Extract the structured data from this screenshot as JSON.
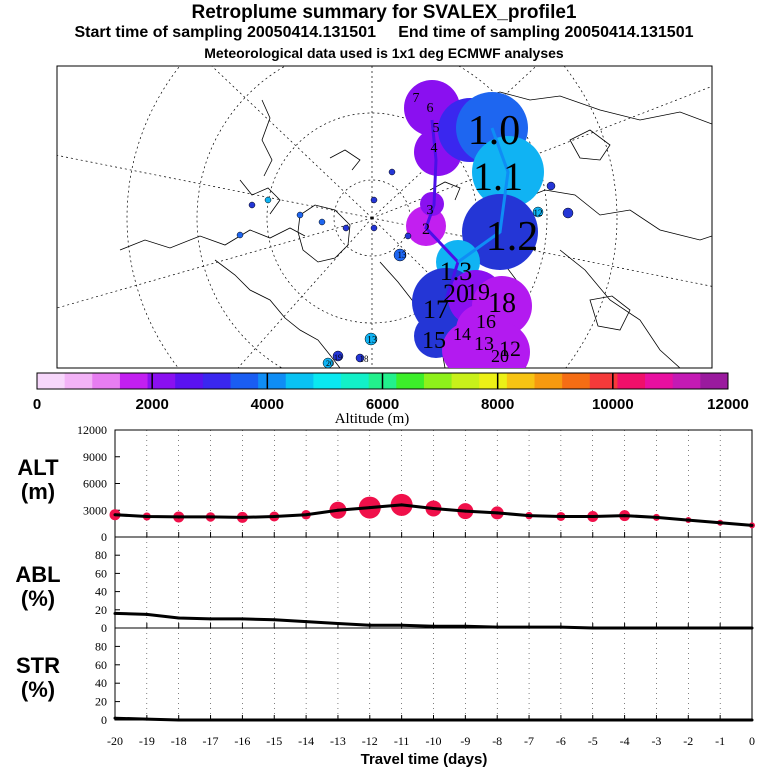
{
  "header": {
    "title": "Retroplume summary for SVALEX_profile1",
    "start_label": "Start time of sampling 20050414.131501",
    "end_label": "End time of sampling 20050414.131501",
    "met_label": "Meteorological data used is 1x1 deg ECMWF analyses"
  },
  "colorbar": {
    "label": "Altitude  (m)",
    "ticks": [
      "0",
      "2000",
      "4000",
      "6000",
      "8000",
      "10000",
      "12000"
    ],
    "colors": [
      "#f7d7fb",
      "#f3b3f7",
      "#e77df1",
      "#c21ff0",
      "#8a10f0",
      "#5a12f0",
      "#3a27ef",
      "#1a5df2",
      "#0f8df5",
      "#09c2f3",
      "#0ae8f0",
      "#12f0c8",
      "#22f08c",
      "#3cee2a",
      "#8ef01a",
      "#c8f01a",
      "#ecf016",
      "#f7c413",
      "#f79a10",
      "#f56d14",
      "#f53a3a",
      "#f0106a",
      "#e810a0",
      "#c41ab4",
      "#9a1a9e"
    ]
  },
  "map": {
    "labels": [
      {
        "t": "1.0",
        "c": "#1e66f0"
      },
      {
        "t": "1.1",
        "c": "#10b3f3"
      },
      {
        "t": "1.2",
        "c": "#2436d6"
      },
      {
        "t": "1.3",
        "c": "#10b3f3"
      },
      {
        "t": "20",
        "c": "#4a10e8"
      },
      {
        "t": "19",
        "c": "#b31af0"
      },
      {
        "t": "18",
        "c": "#b31af0"
      },
      {
        "t": "17",
        "c": "#4a10e8"
      },
      {
        "t": "16",
        "c": "#b31af0"
      },
      {
        "t": "15",
        "c": "#2436d6"
      },
      {
        "t": "14",
        "c": "#b31af0"
      },
      {
        "t": "13",
        "c": "#b31af0"
      },
      {
        "t": "12",
        "c": "#b31af0"
      },
      {
        "t": "20",
        "c": "#b31af0"
      },
      {
        "t": "7",
        "c": "#8a10f0"
      },
      {
        "t": "6",
        "c": "#8a10f0"
      },
      {
        "t": "5",
        "c": "#4a10e8"
      },
      {
        "t": "4",
        "c": "#8a10f0"
      },
      {
        "t": "3",
        "c": "#8a10f0"
      },
      {
        "t": "2",
        "c": "#c21ff0"
      },
      {
        "t": "12",
        "c": "#10b3f3"
      },
      {
        "t": "13",
        "c": "#10b3f3"
      },
      {
        "t": "13",
        "c": "#2436d6"
      },
      {
        "t": "18",
        "c": "#2436d6"
      },
      {
        "t": "19",
        "c": "#10b3f3"
      },
      {
        "t": "20",
        "c": "#10b3f3"
      }
    ]
  },
  "chart_data": {
    "type": "line",
    "xlabel": "Travel time (days)",
    "x": [
      -20,
      -19,
      -18,
      -17,
      -16,
      -15,
      -14,
      -13,
      -12,
      -11,
      -10,
      -9,
      -8,
      -7,
      -6,
      -5,
      -4,
      -3,
      -2,
      -1,
      0
    ],
    "xtick_labels": [
      "-20",
      "-19",
      "-18",
      "-17",
      "-16",
      "-15",
      "-14",
      "-13",
      "-12",
      "-11",
      "-10",
      "-9",
      "-8",
      "-7",
      "-6",
      "-5",
      "-4",
      "-3",
      "-2",
      "-1",
      "0"
    ],
    "panels": [
      {
        "label_top": "ALT",
        "label_bottom": "(m)",
        "ylim": [
          0,
          12000
        ],
        "yticks": [
          0,
          3000,
          6000,
          9000,
          12000
        ],
        "ytick_labels": [
          "0",
          "3000",
          "6000",
          "9000",
          "12000"
        ],
        "mean": [
          2500,
          2300,
          2250,
          2250,
          2200,
          2300,
          2500,
          3000,
          3300,
          3600,
          3200,
          2900,
          2700,
          2400,
          2300,
          2300,
          2400,
          2200,
          1900,
          1600,
          1300
        ],
        "spread": [
          1100,
          800,
          1100,
          950,
          1100,
          1000,
          950,
          1700,
          2200,
          2200,
          1600,
          1600,
          1300,
          750,
          900,
          1100,
          1100,
          700,
          350,
          300,
          200
        ],
        "dot_color": "#f0104a"
      },
      {
        "label_top": "ABL",
        "label_bottom": "(%)",
        "ylim": [
          0,
          100
        ],
        "yticks": [
          0,
          20,
          40,
          60,
          80
        ],
        "ytick_labels": [
          "0",
          "20",
          "40",
          "60",
          "80"
        ],
        "values": [
          16,
          15,
          11,
          10,
          10,
          9,
          7,
          5,
          3,
          3,
          2,
          2,
          1,
          1,
          1,
          0,
          0,
          0,
          0,
          0,
          0
        ]
      },
      {
        "label_top": "STR",
        "label_bottom": "(%)",
        "ylim": [
          0,
          100
        ],
        "yticks": [
          0,
          20,
          40,
          60,
          80
        ],
        "ytick_labels": [
          "0",
          "20",
          "40",
          "60",
          "80"
        ],
        "values": [
          2,
          1,
          0,
          0,
          0,
          0,
          0,
          0,
          0,
          0,
          0,
          0,
          0,
          0,
          0,
          0,
          0,
          0,
          0,
          0,
          0
        ]
      }
    ]
  }
}
